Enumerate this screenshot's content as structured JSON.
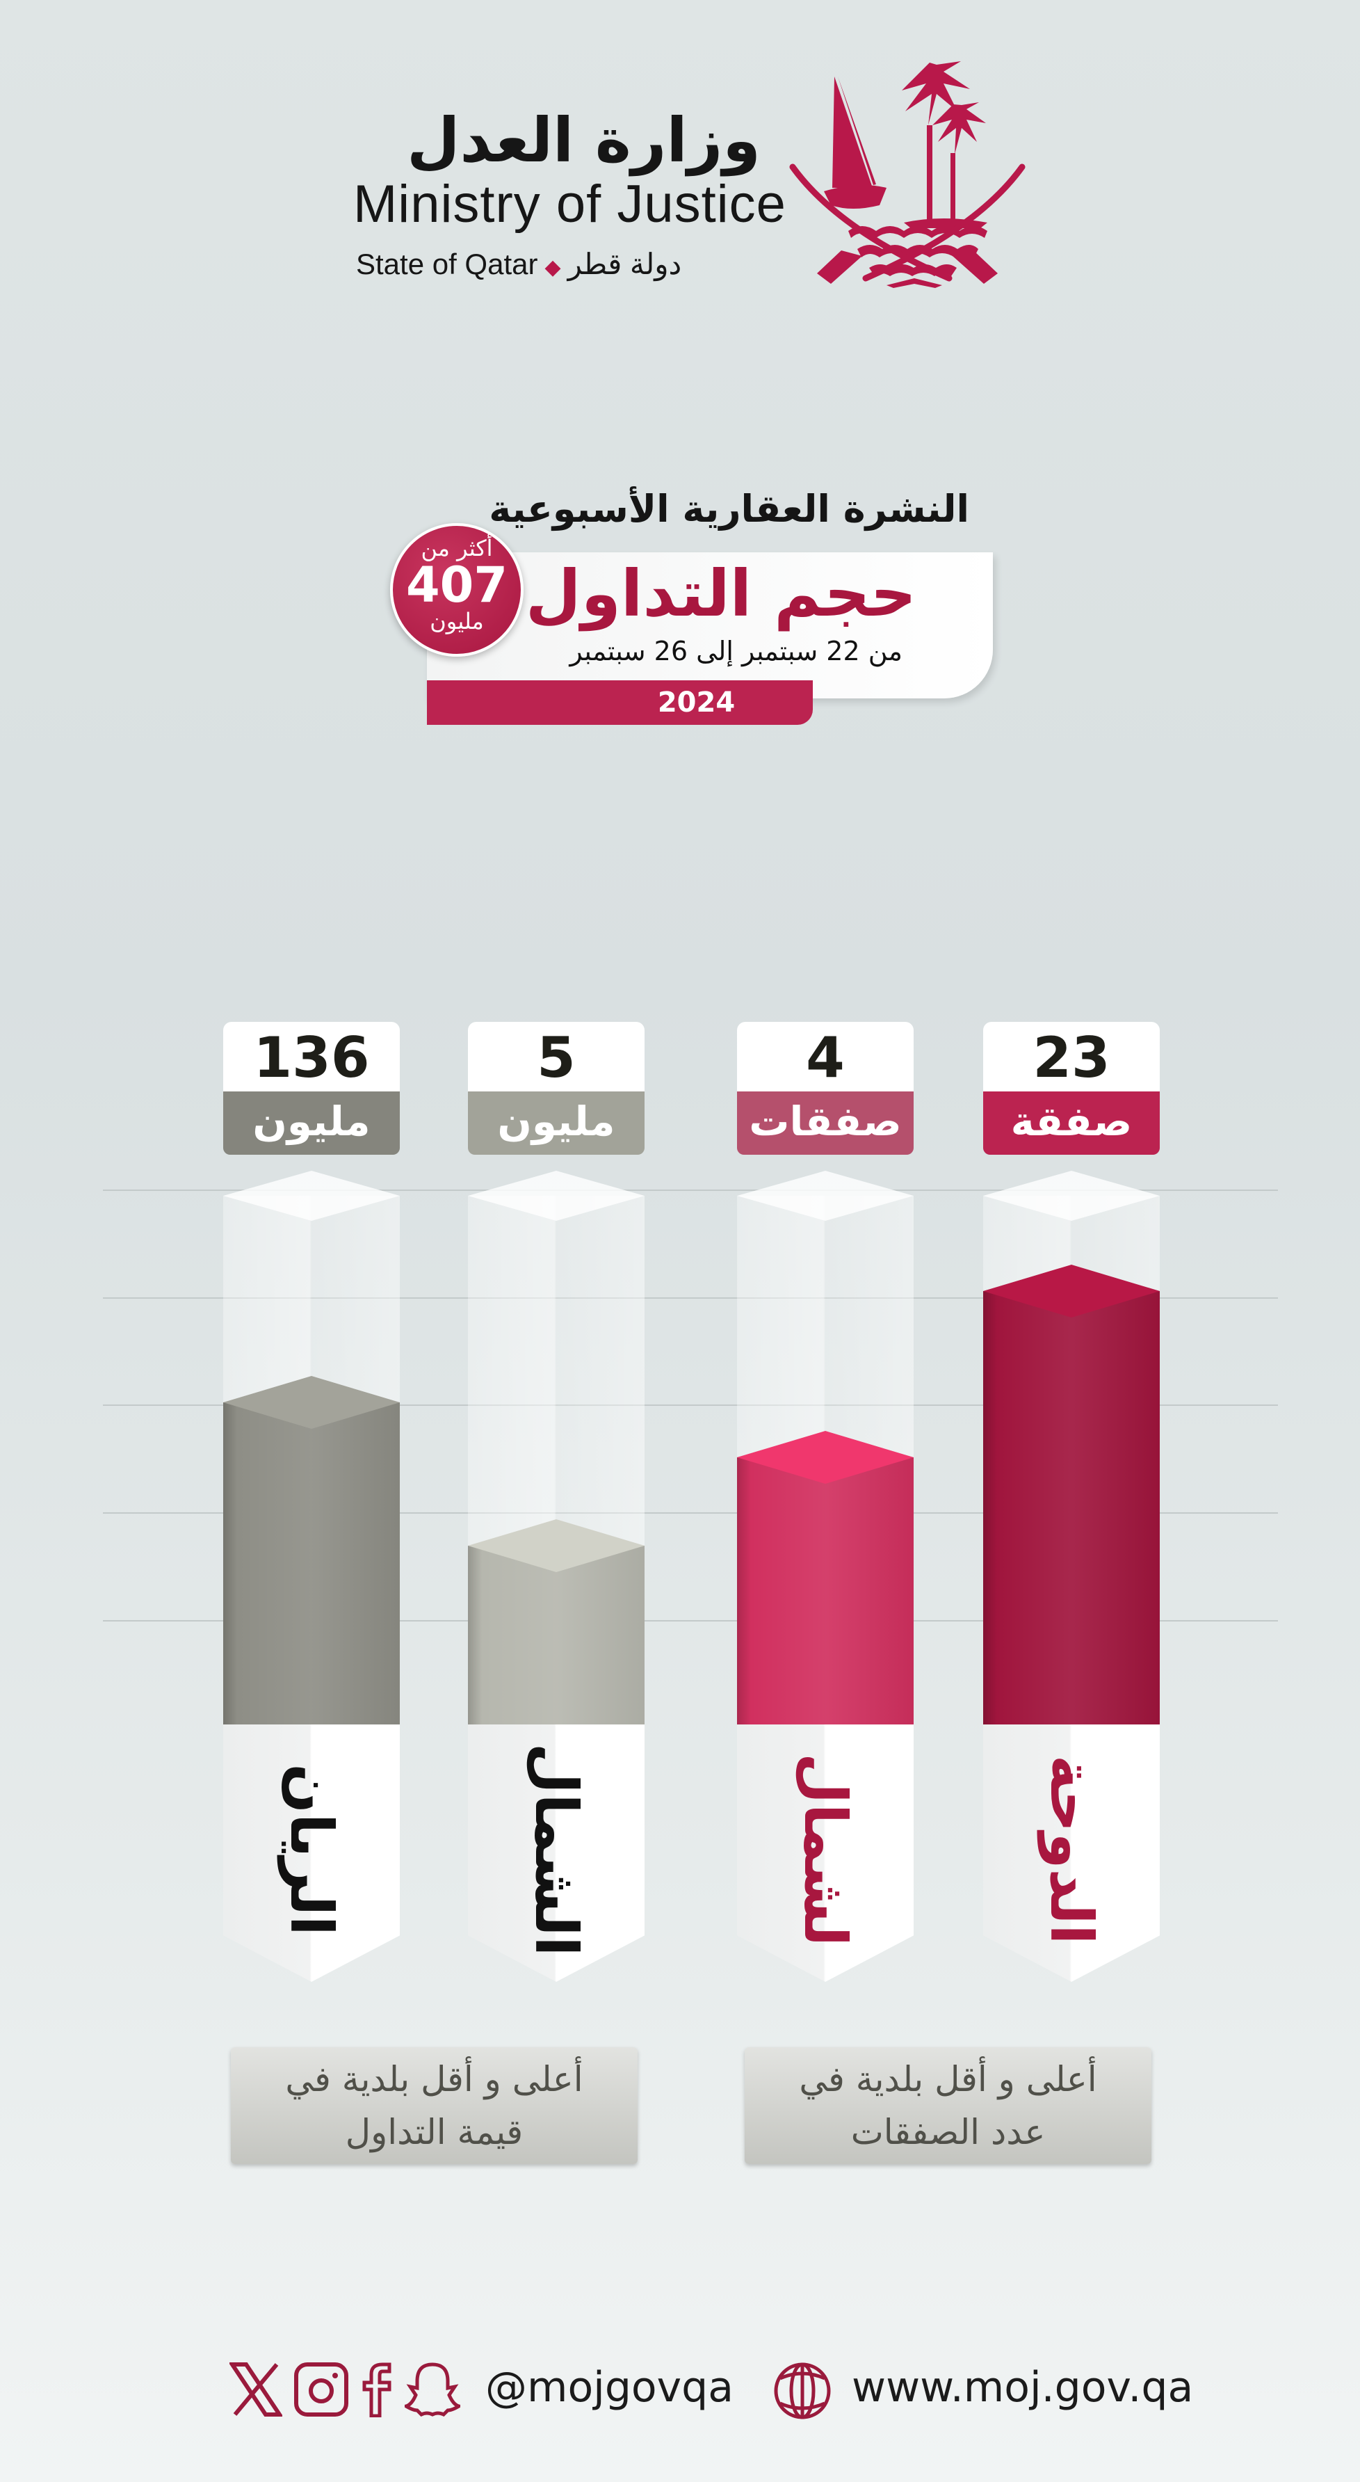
{
  "header": {
    "ministry_ar": "وزارة العدل",
    "ministry_en": "Ministry of Justice",
    "state_en": "State of Qatar",
    "state_ar": "دولة قطر",
    "separator": "◆",
    "brand_color": "#b8184a"
  },
  "title": {
    "bulletin": "النشرة العقارية الأسبوعية",
    "main": "حجم التداول",
    "date_range": "من 22 سبتمبر إلى 26 سبتمبر",
    "year": "2024"
  },
  "badge": {
    "line1": "أكثر من",
    "value": "407",
    "line3": "مليون"
  },
  "chart_data": {
    "type": "bar",
    "categories": [
      "الريان",
      "الشمال",
      "لشمال",
      "الدوحة"
    ],
    "series": [
      {
        "values": [
          136,
          5,
          null,
          null
        ],
        "unit": "مليون"
      },
      {
        "values": [
          null,
          null,
          4,
          23
        ],
        "unit_values": [
          "صفقات",
          "صفقة"
        ]
      }
    ],
    "bars": [
      {
        "name": "الريان",
        "value": "136",
        "unit": "مليون",
        "fill_level": 0.63,
        "color": "#8e8e86",
        "label_color": "#85857d",
        "name_color": "#111111"
      },
      {
        "name": "الشمال",
        "value": "5",
        "unit": "مليون",
        "fill_level": 0.37,
        "color": "#b6b7ae",
        "label_color": "#a2a399",
        "name_color": "#111111"
      },
      {
        "name": "لشمال",
        "value": "4",
        "unit": "صفقات",
        "fill_level": 0.53,
        "color": "#d1305f",
        "label_color": "#b5506c",
        "name_color": "#a8173f"
      },
      {
        "name": "الدوحة",
        "value": "23",
        "unit": "صفقة",
        "fill_level": 0.83,
        "color": "#a0153d",
        "label_color": "#bb2350",
        "name_color": "#a8173f"
      }
    ],
    "grid": true
  },
  "captions": [
    {
      "line1": "أعلى و أقل بلدية في",
      "line2": "قيمة التداول"
    },
    {
      "line1": "أعلى و أقل بلدية في",
      "line2": "عدد الصفقات"
    }
  ],
  "footer": {
    "handle": "@mojgovqa",
    "website": "www.moj.gov.qa",
    "icons": [
      "x-icon",
      "instagram-icon",
      "facebook-icon",
      "snapchat-icon",
      "globe-icon"
    ]
  }
}
